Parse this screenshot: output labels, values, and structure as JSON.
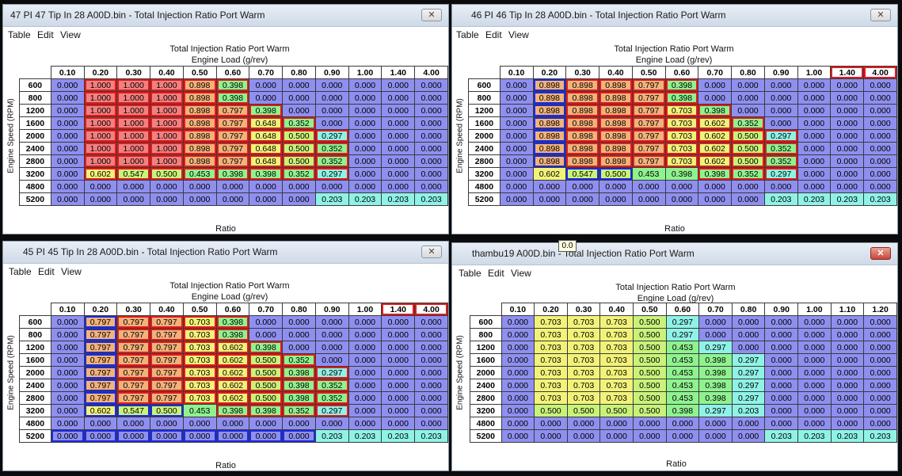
{
  "menu": [
    "Table",
    "Edit",
    "View"
  ],
  "windows": [
    {
      "title": "47 PI 47 Tip In 28 A00D.bin - Total Injection Ratio Port Warm",
      "close": "✕",
      "table_name": "Total Injection Ratio Port Warm",
      "x_axis_label": "Engine Load (g/rev)",
      "y_axis_label": "Engine Speed (RPM)",
      "ratio_label": "Ratio",
      "cols": [
        "0.10",
        "0.20",
        "0.30",
        "0.40",
        "0.50",
        "0.60",
        "0.70",
        "0.80",
        "0.90",
        "1.00",
        "1.40",
        "4.00"
      ],
      "rows": [
        "600",
        "800",
        "1200",
        "1600",
        "2000",
        "2400",
        "2800",
        "3200",
        "4800",
        "5200"
      ],
      "values": [
        [
          "0.000",
          "1.000",
          "1.000",
          "1.000",
          "0.898",
          "0.398",
          "0.000",
          "0.000",
          "0.000",
          "0.000",
          "0.000",
          "0.000"
        ],
        [
          "0.000",
          "1.000",
          "1.000",
          "1.000",
          "0.898",
          "0.398",
          "0.000",
          "0.000",
          "0.000",
          "0.000",
          "0.000",
          "0.000"
        ],
        [
          "0.000",
          "1.000",
          "1.000",
          "1.000",
          "0.898",
          "0.797",
          "0.398",
          "0.000",
          "0.000",
          "0.000",
          "0.000",
          "0.000"
        ],
        [
          "0.000",
          "1.000",
          "1.000",
          "1.000",
          "0.898",
          "0.797",
          "0.648",
          "0.352",
          "0.000",
          "0.000",
          "0.000",
          "0.000"
        ],
        [
          "0.000",
          "1.000",
          "1.000",
          "1.000",
          "0.898",
          "0.797",
          "0.648",
          "0.500",
          "0.297",
          "0.000",
          "0.000",
          "0.000"
        ],
        [
          "0.000",
          "1.000",
          "1.000",
          "1.000",
          "0.898",
          "0.797",
          "0.648",
          "0.500",
          "0.352",
          "0.000",
          "0.000",
          "0.000"
        ],
        [
          "0.000",
          "1.000",
          "1.000",
          "1.000",
          "0.898",
          "0.797",
          "0.648",
          "0.500",
          "0.352",
          "0.000",
          "0.000",
          "0.000"
        ],
        [
          "0.000",
          "0.602",
          "0.547",
          "0.500",
          "0.453",
          "0.398",
          "0.398",
          "0.352",
          "0.297",
          "0.000",
          "0.000",
          "0.000"
        ],
        [
          "0.000",
          "0.000",
          "0.000",
          "0.000",
          "0.000",
          "0.000",
          "0.000",
          "0.000",
          "0.000",
          "0.000",
          "0.000",
          "0.000"
        ],
        [
          "0.000",
          "0.000",
          "0.000",
          "0.000",
          "0.000",
          "0.000",
          "0.000",
          "0.000",
          "0.203",
          "0.203",
          "0.203",
          "0.203"
        ]
      ],
      "red_headers": []
    },
    {
      "title": "46 PI 46 Tip In 28 A00D.bin - Total Injection Ratio Port Warm",
      "close": "✕",
      "table_name": "Total Injection Ratio Port Warm",
      "x_axis_label": "Engine Load (g/rev)",
      "y_axis_label": "Engine Speed (RPM)",
      "ratio_label": "Ratio",
      "cols": [
        "0.10",
        "0.20",
        "0.30",
        "0.40",
        "0.50",
        "0.60",
        "0.70",
        "0.80",
        "0.90",
        "1.00",
        "1.40",
        "4.00"
      ],
      "rows": [
        "600",
        "800",
        "1200",
        "1600",
        "2000",
        "2400",
        "2800",
        "3200",
        "4800",
        "5200"
      ],
      "values": [
        [
          "0.000",
          "0.898",
          "0.898",
          "0.898",
          "0.797",
          "0.398",
          "0.000",
          "0.000",
          "0.000",
          "0.000",
          "0.000",
          "0.000"
        ],
        [
          "0.000",
          "0.898",
          "0.898",
          "0.898",
          "0.797",
          "0.398",
          "0.000",
          "0.000",
          "0.000",
          "0.000",
          "0.000",
          "0.000"
        ],
        [
          "0.000",
          "0.898",
          "0.898",
          "0.898",
          "0.797",
          "0.703",
          "0.398",
          "0.000",
          "0.000",
          "0.000",
          "0.000",
          "0.000"
        ],
        [
          "0.000",
          "0.898",
          "0.898",
          "0.898",
          "0.797",
          "0.703",
          "0.602",
          "0.352",
          "0.000",
          "0.000",
          "0.000",
          "0.000"
        ],
        [
          "0.000",
          "0.898",
          "0.898",
          "0.898",
          "0.797",
          "0.703",
          "0.602",
          "0.500",
          "0.297",
          "0.000",
          "0.000",
          "0.000"
        ],
        [
          "0.000",
          "0.898",
          "0.898",
          "0.898",
          "0.797",
          "0.703",
          "0.602",
          "0.500",
          "0.352",
          "0.000",
          "0.000",
          "0.000"
        ],
        [
          "0.000",
          "0.898",
          "0.898",
          "0.898",
          "0.797",
          "0.703",
          "0.602",
          "0.500",
          "0.352",
          "0.000",
          "0.000",
          "0.000"
        ],
        [
          "0.000",
          "0.602",
          "0.547",
          "0.500",
          "0.453",
          "0.398",
          "0.398",
          "0.352",
          "0.297",
          "0.000",
          "0.000",
          "0.000"
        ],
        [
          "0.000",
          "0.000",
          "0.000",
          "0.000",
          "0.000",
          "0.000",
          "0.000",
          "0.000",
          "0.000",
          "0.000",
          "0.000",
          "0.000"
        ],
        [
          "0.000",
          "0.000",
          "0.000",
          "0.000",
          "0.000",
          "0.000",
          "0.000",
          "0.000",
          "0.203",
          "0.203",
          "0.203",
          "0.203"
        ]
      ],
      "red_headers": [
        "1.40",
        "4.00"
      ]
    },
    {
      "title": "45 PI 45 Tip In 28 A00D.bin - Total Injection Ratio Port Warm",
      "close": "✕",
      "table_name": "Total Injection Ratio Port Warm",
      "x_axis_label": "Engine Load (g/rev)",
      "y_axis_label": "Engine Speed (RPM)",
      "ratio_label": "Ratio",
      "cols": [
        "0.10",
        "0.20",
        "0.30",
        "0.40",
        "0.50",
        "0.60",
        "0.70",
        "0.80",
        "0.90",
        "1.00",
        "1.40",
        "4.00"
      ],
      "rows": [
        "600",
        "800",
        "1200",
        "1600",
        "2000",
        "2400",
        "2800",
        "3200",
        "4800",
        "5200"
      ],
      "values": [
        [
          "0.000",
          "0.797",
          "0.797",
          "0.797",
          "0.703",
          "0.398",
          "0.000",
          "0.000",
          "0.000",
          "0.000",
          "0.000",
          "0.000"
        ],
        [
          "0.000",
          "0.797",
          "0.797",
          "0.797",
          "0.703",
          "0.398",
          "0.000",
          "0.000",
          "0.000",
          "0.000",
          "0.000",
          "0.000"
        ],
        [
          "0.000",
          "0.797",
          "0.797",
          "0.797",
          "0.703",
          "0.602",
          "0.398",
          "0.000",
          "0.000",
          "0.000",
          "0.000",
          "0.000"
        ],
        [
          "0.000",
          "0.797",
          "0.797",
          "0.797",
          "0.703",
          "0.602",
          "0.500",
          "0.352",
          "0.000",
          "0.000",
          "0.000",
          "0.000"
        ],
        [
          "0.000",
          "0.797",
          "0.797",
          "0.797",
          "0.703",
          "0.602",
          "0.500",
          "0.398",
          "0.297",
          "0.000",
          "0.000",
          "0.000"
        ],
        [
          "0.000",
          "0.797",
          "0.797",
          "0.797",
          "0.703",
          "0.602",
          "0.500",
          "0.398",
          "0.352",
          "0.000",
          "0.000",
          "0.000"
        ],
        [
          "0.000",
          "0.797",
          "0.797",
          "0.797",
          "0.703",
          "0.602",
          "0.500",
          "0.398",
          "0.352",
          "0.000",
          "0.000",
          "0.000"
        ],
        [
          "0.000",
          "0.602",
          "0.547",
          "0.500",
          "0.453",
          "0.398",
          "0.398",
          "0.352",
          "0.297",
          "0.000",
          "0.000",
          "0.000"
        ],
        [
          "0.000",
          "0.000",
          "0.000",
          "0.000",
          "0.000",
          "0.000",
          "0.000",
          "0.000",
          "0.000",
          "0.000",
          "0.000",
          "0.000"
        ],
        [
          "0.000",
          "0.000",
          "0.000",
          "0.000",
          "0.000",
          "0.000",
          "0.000",
          "0.000",
          "0.203",
          "0.203",
          "0.203",
          "0.203"
        ]
      ],
      "red_headers": [
        "1.40",
        "4.00"
      ]
    },
    {
      "title": "thambu19 A00D.bin - Total Injection Ratio Port Warm",
      "close": "✕",
      "table_name": "Total Injection Ratio Port Warm",
      "x_axis_label": "Engine Load (g/rev)",
      "y_axis_label": "Engine Speed (RPM)",
      "ratio_label": "Ratio",
      "cols": [
        "0.10",
        "0.20",
        "0.30",
        "0.40",
        "0.50",
        "0.60",
        "0.70",
        "0.80",
        "0.90",
        "1.00",
        "1.10",
        "1.20"
      ],
      "rows": [
        "600",
        "800",
        "1200",
        "1600",
        "2000",
        "2400",
        "2800",
        "3200",
        "4800",
        "5200"
      ],
      "values": [
        [
          "0.000",
          "0.703",
          "0.703",
          "0.703",
          "0.500",
          "0.297",
          "0.000",
          "0.000",
          "0.000",
          "0.000",
          "0.000",
          "0.000"
        ],
        [
          "0.000",
          "0.703",
          "0.703",
          "0.703",
          "0.500",
          "0.297",
          "0.000",
          "0.000",
          "0.000",
          "0.000",
          "0.000",
          "0.000"
        ],
        [
          "0.000",
          "0.703",
          "0.703",
          "0.703",
          "0.500",
          "0.453",
          "0.297",
          "0.000",
          "0.000",
          "0.000",
          "0.000",
          "0.000"
        ],
        [
          "0.000",
          "0.703",
          "0.703",
          "0.703",
          "0.500",
          "0.453",
          "0.398",
          "0.297",
          "0.000",
          "0.000",
          "0.000",
          "0.000"
        ],
        [
          "0.000",
          "0.703",
          "0.703",
          "0.703",
          "0.500",
          "0.453",
          "0.398",
          "0.297",
          "0.000",
          "0.000",
          "0.000",
          "0.000"
        ],
        [
          "0.000",
          "0.703",
          "0.703",
          "0.703",
          "0.500",
          "0.453",
          "0.398",
          "0.297",
          "0.000",
          "0.000",
          "0.000",
          "0.000"
        ],
        [
          "0.000",
          "0.703",
          "0.703",
          "0.703",
          "0.500",
          "0.453",
          "0.398",
          "0.297",
          "0.000",
          "0.000",
          "0.000",
          "0.000"
        ],
        [
          "0.000",
          "0.500",
          "0.500",
          "0.500",
          "0.500",
          "0.398",
          "0.297",
          "0.203",
          "0.000",
          "0.000",
          "0.000",
          "0.000"
        ],
        [
          "0.000",
          "0.000",
          "0.000",
          "0.000",
          "0.000",
          "0.000",
          "0.000",
          "0.000",
          "0.000",
          "0.000",
          "0.000",
          "0.000"
        ],
        [
          "0.000",
          "0.000",
          "0.000",
          "0.000",
          "0.000",
          "0.000",
          "0.000",
          "0.000",
          "0.203",
          "0.203",
          "0.203",
          "0.203"
        ]
      ],
      "red_headers": []
    }
  ],
  "tooltip": "0.0",
  "colors": {
    "zero": "#8f8ff0",
    "low": "#8ff2e6",
    "mid_low": "#8ff28f",
    "mid": "#c9f27a",
    "mid_high": "#f2f27a",
    "high": "#f2b27a",
    "top": "#f28080"
  }
}
